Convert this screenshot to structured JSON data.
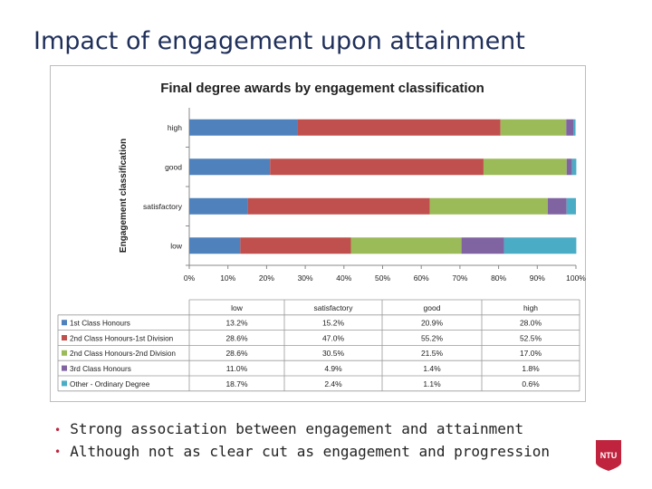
{
  "slide": {
    "title": "Impact of engagement upon attainment",
    "bullets": [
      "Strong association between engagement and attainment",
      "Although not as clear cut as engagement and progression"
    ],
    "logo_text": "NTU"
  },
  "colors": {
    "title": "#1f2f5a",
    "bullet_marker": "#c0233d",
    "logo": "#c0233d"
  },
  "chart_data": {
    "type": "bar",
    "orientation": "horizontal-stacked-percent",
    "title": "Final degree awards by engagement classification",
    "ylabel": "Engagement classification",
    "xlabel": "",
    "categories": [
      "low",
      "satisfactory",
      "good",
      "high"
    ],
    "xlim": [
      0,
      100
    ],
    "xticks": [
      "0%",
      "10%",
      "20%",
      "30%",
      "40%",
      "50%",
      "60%",
      "70%",
      "80%",
      "90%",
      "100%"
    ],
    "grid": false,
    "legend": "data-table-below",
    "series": [
      {
        "name": "1st Class Honours",
        "color": "#4f81bd",
        "values": [
          13.2,
          15.2,
          20.9,
          28.0
        ]
      },
      {
        "name": "2nd Class Honours-1st Division",
        "color": "#c0504d",
        "values": [
          28.6,
          47.0,
          55.2,
          52.5
        ]
      },
      {
        "name": "2nd Class Honours-2nd Division",
        "color": "#9bbb59",
        "values": [
          28.6,
          30.5,
          21.5,
          17.0
        ]
      },
      {
        "name": "3rd Class Honours",
        "color": "#8064a2",
        "values": [
          11.0,
          4.9,
          1.4,
          1.8
        ]
      },
      {
        "name": "Other - Ordinary Degree",
        "color": "#4bacc6",
        "values": [
          18.7,
          2.4,
          1.1,
          0.6
        ]
      }
    ],
    "table": {
      "columns": [
        "low",
        "satisfactory",
        "good",
        "high"
      ],
      "rows": [
        [
          "13.2%",
          "15.2%",
          "20.9%",
          "28.0%"
        ],
        [
          "28.6%",
          "47.0%",
          "55.2%",
          "52.5%"
        ],
        [
          "28.6%",
          "30.5%",
          "21.5%",
          "17.0%"
        ],
        [
          "11.0%",
          "4.9%",
          "1.4%",
          "1.8%"
        ],
        [
          "18.7%",
          "2.4%",
          "1.1%",
          "0.6%"
        ]
      ]
    }
  }
}
